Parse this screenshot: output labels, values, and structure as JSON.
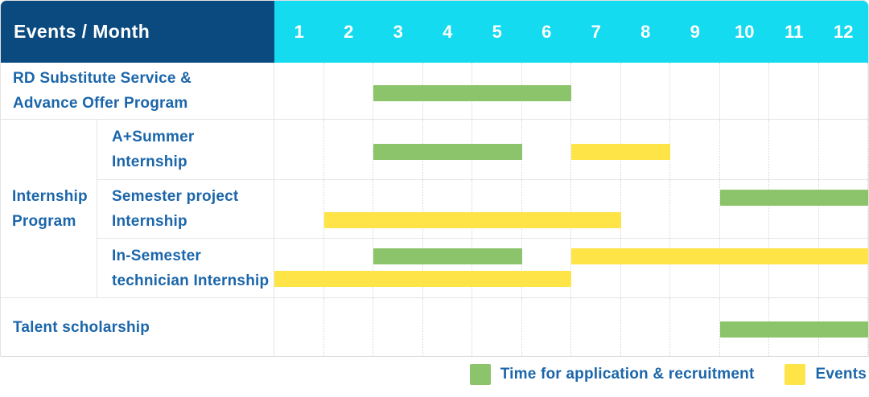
{
  "chart_data": {
    "type": "gantt",
    "x_unit": "month",
    "x_range": [
      1,
      12
    ],
    "x_ticks": [
      "1",
      "2",
      "3",
      "4",
      "5",
      "6",
      "7",
      "8",
      "9",
      "10",
      "11",
      "12"
    ],
    "corner_label": "Events / Month",
    "rows": [
      {
        "group": null,
        "label": "RD Substitute Service & Advance Offer Program",
        "label_lines": [
          "RD Substitute Service &",
          "Advance Offer Program"
        ],
        "bars": [
          {
            "kind": "application",
            "start_month": 3,
            "end_month": 6,
            "lane": "center"
          }
        ]
      },
      {
        "group": "Internship Program",
        "group_lines": [
          "Internship",
          "Program"
        ],
        "subrows": [
          {
            "label": "A+Summer Internship",
            "label_lines": [
              "A+Summer",
              "Internship"
            ],
            "bars": [
              {
                "kind": "application",
                "start_month": 3,
                "end_month": 5,
                "lane": "center"
              },
              {
                "kind": "event",
                "start_month": 7,
                "end_month": 8,
                "lane": "center"
              }
            ]
          },
          {
            "label": "Semester project Internship",
            "label_lines": [
              "Semester project",
              "Internship"
            ],
            "bars": [
              {
                "kind": "application",
                "start_month": 10,
                "end_month": 12,
                "lane": "top"
              },
              {
                "kind": "event",
                "start_month": 2,
                "end_month": 7,
                "lane": "bottom"
              }
            ]
          },
          {
            "label": "In-Semester technician Internship",
            "label_lines": [
              "In-Semester",
              "technician Internship"
            ],
            "bars": [
              {
                "kind": "application",
                "start_month": 3,
                "end_month": 5,
                "lane": "top"
              },
              {
                "kind": "event",
                "start_month": 7,
                "end_month": 12,
                "lane": "top"
              },
              {
                "kind": "event",
                "start_month": 1,
                "end_month": 6,
                "lane": "bottom"
              }
            ]
          }
        ]
      },
      {
        "group": null,
        "label": "Talent scholarship",
        "label_lines": [
          "Talent scholarship"
        ],
        "bars": [
          {
            "kind": "application",
            "start_month": 10,
            "end_month": 12,
            "lane": "center"
          }
        ]
      }
    ],
    "legend": [
      {
        "key": "application",
        "label": "Time for application & recruitment",
        "color": "#8BC46A"
      },
      {
        "key": "event",
        "label": "Events",
        "color": "#FFE447"
      }
    ],
    "colors": {
      "corner_bg": "#0A4A7F",
      "months_bg": "#14DBEF",
      "header_text": "#FFFFFF",
      "row_label_text": "#1B66AA",
      "application_bar": "#8BC46A",
      "event_bar": "#FFE447"
    },
    "grid": {
      "vertical_lines": "dotted",
      "horizontal_lines": "solid",
      "legend_position": "bottom-right"
    }
  }
}
